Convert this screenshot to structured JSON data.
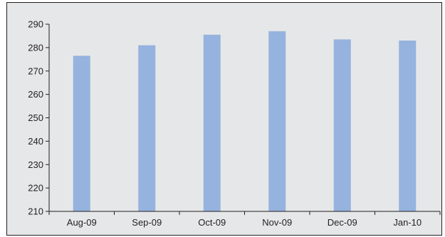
{
  "chart_data": {
    "type": "bar",
    "title": "",
    "xlabel": "",
    "ylabel": "",
    "categories": [
      "Aug-09",
      "Sep-09",
      "Oct-09",
      "Nov-09",
      "Dec-09",
      "Jan-10"
    ],
    "values": [
      276.5,
      281,
      285.5,
      287,
      283.5,
      283
    ],
    "ylim": [
      210,
      290
    ],
    "yticks": [
      210,
      220,
      230,
      240,
      250,
      260,
      270,
      280,
      290
    ],
    "grid": false,
    "legend": "none",
    "bar_color": "#95b3de",
    "axis_color": "#231f20",
    "background_color": "#e6e7e8"
  }
}
